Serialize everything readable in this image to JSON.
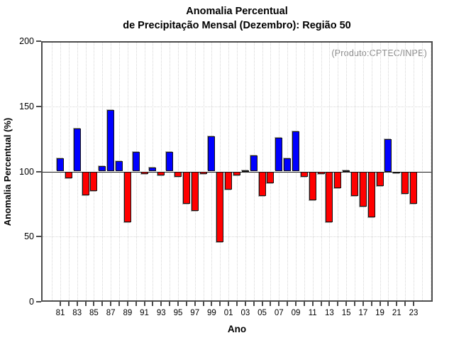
{
  "chart_data": {
    "type": "bar",
    "title": "Anomalia Percentual de Precipitação Mensal (Dezembro): Região 50",
    "title_line1": "Anomalia Percentual",
    "title_line2": "de Precipitação Mensal (Dezembro): Região 50",
    "annotation": "(Produto:CPTEC/INPE)",
    "xlabel": "Ano",
    "ylabel": "Anomalia Percentual (%)",
    "ylim": [
      0,
      200
    ],
    "yticks": [
      0,
      50,
      100,
      150,
      200
    ],
    "baseline": 100,
    "grid_horizontal": [
      50,
      150
    ],
    "grid": "dotted",
    "legend_position": "none",
    "positive_color": "#0000ff",
    "negative_color": "#ff0000",
    "categories": [
      1981,
      1982,
      1983,
      1984,
      1985,
      1986,
      1987,
      1988,
      1989,
      1990,
      1991,
      1992,
      1993,
      1994,
      1995,
      1996,
      1997,
      1998,
      1999,
      2000,
      2001,
      2002,
      2003,
      2004,
      2005,
      2006,
      2007,
      2008,
      2009,
      2010,
      2011,
      2012,
      2013,
      2014,
      2015,
      2016,
      2017,
      2018,
      2019,
      2020,
      2021,
      2022,
      2023
    ],
    "x_tick_labels": [
      "81",
      "83",
      "85",
      "87",
      "89",
      "91",
      "93",
      "95",
      "97",
      "99",
      "01",
      "03",
      "05",
      "07",
      "09",
      "11",
      "13",
      "15",
      "17",
      "19",
      "21",
      "23"
    ],
    "values": [
      110,
      95,
      133,
      82,
      85,
      104,
      147,
      108,
      61,
      115,
      98,
      103,
      97,
      115,
      96,
      75,
      70,
      98,
      127,
      46,
      86,
      97,
      101,
      112,
      81,
      91,
      126,
      110,
      131,
      96,
      78,
      98,
      61,
      87,
      101,
      81,
      73,
      65,
      89,
      125,
      99,
      83,
      75
    ]
  }
}
